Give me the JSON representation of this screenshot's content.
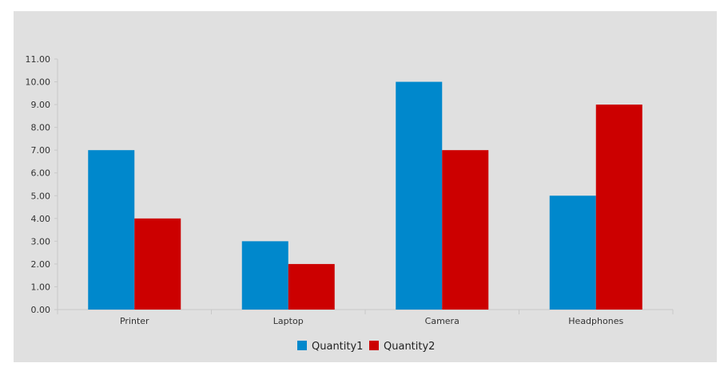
{
  "chart_data": {
    "type": "bar",
    "title": "",
    "xlabel": "",
    "ylabel": "",
    "categories": [
      "Printer",
      "Laptop",
      "Camera",
      "Headphones"
    ],
    "series": [
      {
        "name": "Quantity1",
        "values": [
          7,
          3,
          10,
          5
        ],
        "color": "#0088cc"
      },
      {
        "name": "Quantity2",
        "values": [
          4,
          2,
          7,
          9
        ],
        "color": "#cc0000"
      }
    ],
    "ylim": [
      0,
      11
    ],
    "yticks": [
      "0.00",
      "1.00",
      "2.00",
      "3.00",
      "4.00",
      "5.00",
      "6.00",
      "7.00",
      "8.00",
      "9.00",
      "10.00",
      "11.00"
    ],
    "legend_position": "bottom-center",
    "background_color": "#e0e0e0",
    "grid": false
  }
}
